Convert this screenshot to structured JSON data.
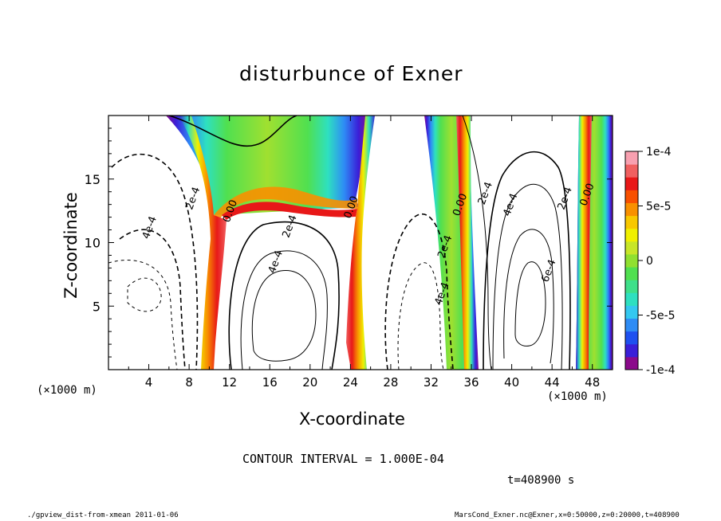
{
  "chart_data": {
    "type": "heatmap",
    "title": "disturbunce of Exner",
    "xlabel": "X-coordinate",
    "ylabel": "Z-coordinate",
    "x_unit_label": "(×1000 m)",
    "y_unit_label": "(×1000 m)",
    "xlim": [
      0,
      50
    ],
    "ylim": [
      0,
      20
    ],
    "x_ticks": [
      "4",
      "8",
      "12",
      "16",
      "20",
      "24",
      "28",
      "32",
      "36",
      "40",
      "44",
      "48"
    ],
    "y_ticks": [
      "5",
      "10",
      "15"
    ],
    "colorbar": {
      "range": [
        -0.0001,
        0.0001
      ],
      "tick_labels": [
        "1e-4",
        "5e-5",
        "0",
        "-5e-5",
        "-1e-4"
      ],
      "colors": [
        "#8b0a8b",
        "#3a1fd8",
        "#1e50f0",
        "#2e8cf5",
        "#34c8f0",
        "#2ee0c0",
        "#3ee08a",
        "#50e050",
        "#90e030",
        "#c8e628",
        "#f0f000",
        "#f8c800",
        "#f89000",
        "#f85000",
        "#e81818",
        "#f06060",
        "#f8a0b0"
      ]
    },
    "contour_labels": [
      {
        "text": "2e-4",
        "x": 8.3,
        "z": 13.5
      },
      {
        "text": "4e-4",
        "x": 4.0,
        "z": 11.2
      },
      {
        "text": "0.00",
        "x": 12.0,
        "z": 12.5
      },
      {
        "text": "2e-4",
        "x": 17.9,
        "z": 11.3
      },
      {
        "text": "4e-4",
        "x": 16.5,
        "z": 8.5
      },
      {
        "text": "0.00",
        "x": 24.0,
        "z": 12.8
      },
      {
        "text": "0.00",
        "x": 34.8,
        "z": 13.0
      },
      {
        "text": "2e-4",
        "x": 33.3,
        "z": 9.7
      },
      {
        "text": "4e-4",
        "x": 33.0,
        "z": 6.0
      },
      {
        "text": "2e-4",
        "x": 37.3,
        "z": 13.9
      },
      {
        "text": "4e-4",
        "x": 39.8,
        "z": 13.0
      },
      {
        "text": "6e-4",
        "x": 43.6,
        "z": 7.8
      },
      {
        "text": "2e-4",
        "x": 45.2,
        "z": 13.5
      },
      {
        "text": "0.00",
        "x": 47.4,
        "z": 13.8
      }
    ],
    "contour_interval_text": "CONTOUR INTERVAL = 1.000E-04",
    "time_text": "t=408900 s"
  },
  "footer": {
    "left": "./gpview_dist-from-xmean  2011-01-06",
    "right": "MarsCond_Exner.nc@Exner,x=0:50000,z=0:20000,t=408900"
  }
}
